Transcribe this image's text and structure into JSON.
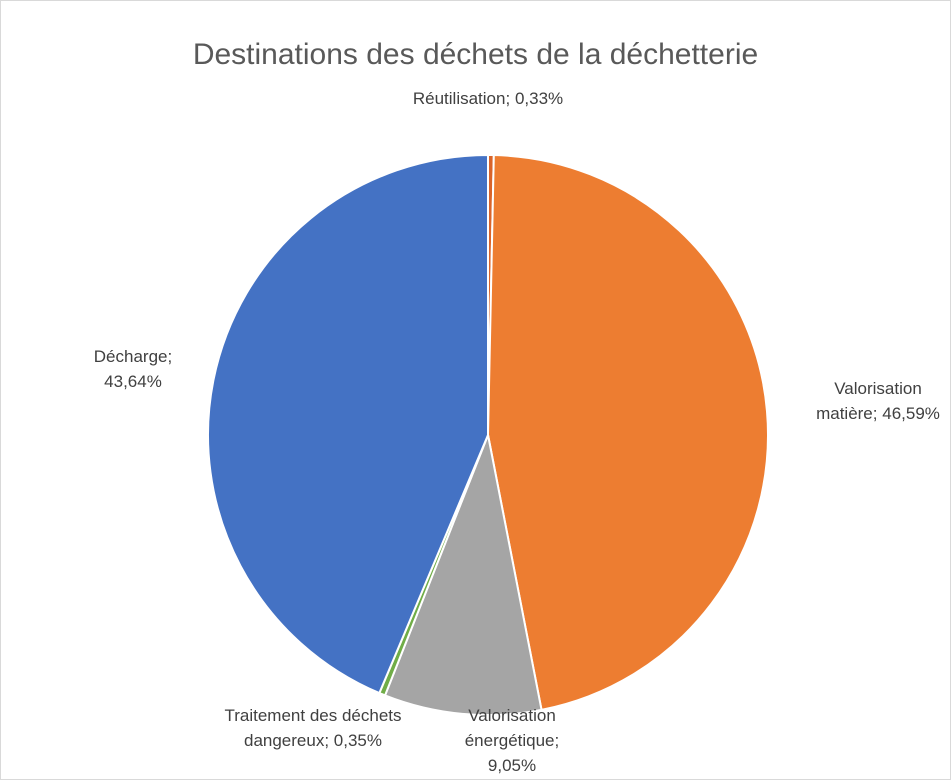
{
  "chart_data": {
    "type": "pie",
    "title": "Destinations des déchets de la déchetterie",
    "categories": [
      "Réutilisation",
      "Valorisation matière",
      "Valorisation énergétique",
      "Traitement des déchets dangereux",
      "Décharge"
    ],
    "values": [
      0.33,
      46.59,
      9.05,
      0.35,
      43.64
    ],
    "value_labels": [
      "0,33%",
      "46,59%",
      "9,05%",
      "0,35%",
      "43,64%"
    ],
    "separator": ";",
    "colors": [
      "#d9642a",
      "#ed7d31",
      "#a5a5a5",
      "#70ad47",
      "#4472c4"
    ]
  }
}
